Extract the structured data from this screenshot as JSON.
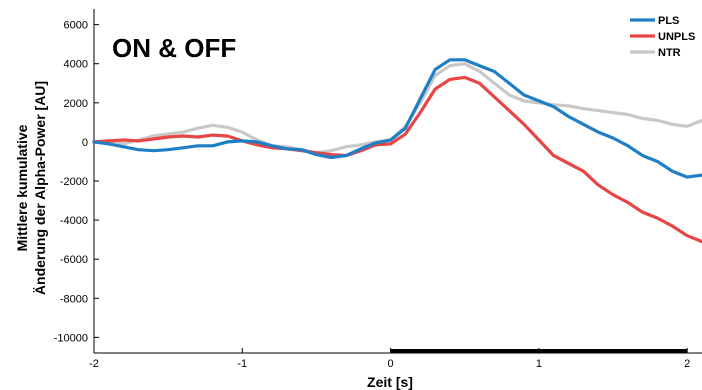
{
  "chart_data": {
    "type": "line",
    "title": "ON & OFF",
    "xlabel": "Zeit [s]",
    "ylabel_line1": "Mittlere kumulative",
    "ylabel_line2": "Änderung der Alpha-Power [AU]",
    "xlim": [
      -2,
      2.1
    ],
    "ylim": [
      -10800,
      6800
    ],
    "x_ticks": [
      -2,
      -1,
      0,
      1,
      2
    ],
    "x_tick_labels": [
      "-2",
      "-1",
      "0",
      "1",
      "2"
    ],
    "y_ticks": [
      6000,
      4000,
      2000,
      0,
      -2000,
      -4000,
      -6000,
      -8000,
      -10000
    ],
    "y_tick_labels": [
      "6000",
      "4000",
      "2000",
      "0",
      "-2000",
      "-4000",
      "-6000",
      "-8000",
      "-10000"
    ],
    "grid": false,
    "legend_position": "top-right",
    "significance_bar": {
      "x": [
        0,
        2
      ],
      "y": -10800,
      "color": "#000000"
    },
    "series": [
      {
        "name": "NTR",
        "color": "#c8c8c8",
        "x": [
          -2,
          -1.9,
          -1.8,
          -1.7,
          -1.6,
          -1.5,
          -1.4,
          -1.3,
          -1.2,
          -1.1,
          -1.0,
          -0.9,
          -0.8,
          -0.7,
          -0.6,
          -0.5,
          -0.4,
          -0.3,
          -0.2,
          -0.1,
          0,
          0.1,
          0.2,
          0.3,
          0.4,
          0.5,
          0.6,
          0.7,
          0.8,
          0.9,
          1.0,
          1.1,
          1.2,
          1.3,
          1.4,
          1.5,
          1.6,
          1.7,
          1.8,
          1.9,
          2.0,
          2.1
        ],
        "values": [
          0,
          50,
          -100,
          100,
          300,
          400,
          500,
          700,
          850,
          750,
          500,
          100,
          -200,
          -250,
          -400,
          -550,
          -450,
          -250,
          -150,
          0,
          100,
          800,
          2000,
          3400,
          3900,
          4000,
          3600,
          3000,
          2400,
          2100,
          2000,
          1900,
          1850,
          1700,
          1600,
          1500,
          1400,
          1200,
          1100,
          900,
          800,
          1100
        ]
      },
      {
        "name": "UNPLS",
        "color": "#e84545",
        "x": [
          -2,
          -1.9,
          -1.8,
          -1.7,
          -1.6,
          -1.5,
          -1.4,
          -1.3,
          -1.2,
          -1.1,
          -1.0,
          -0.9,
          -0.8,
          -0.7,
          -0.6,
          -0.5,
          -0.4,
          -0.3,
          -0.2,
          -0.1,
          0,
          0.1,
          0.2,
          0.3,
          0.4,
          0.5,
          0.6,
          0.7,
          0.8,
          0.9,
          1.0,
          1.1,
          1.2,
          1.3,
          1.4,
          1.5,
          1.6,
          1.7,
          1.8,
          1.9,
          2.0,
          2.1
        ],
        "values": [
          0,
          50,
          100,
          50,
          150,
          250,
          300,
          250,
          350,
          300,
          50,
          -150,
          -300,
          -350,
          -450,
          -550,
          -650,
          -700,
          -450,
          -150,
          -100,
          400,
          1500,
          2700,
          3200,
          3300,
          3000,
          2300,
          1600,
          900,
          100,
          -700,
          -1100,
          -1500,
          -2200,
          -2700,
          -3100,
          -3600,
          -3900,
          -4300,
          -4800,
          -5100
        ]
      },
      {
        "name": "PLS",
        "color": "#1f7fc4",
        "x": [
          -2,
          -1.9,
          -1.8,
          -1.7,
          -1.6,
          -1.5,
          -1.4,
          -1.3,
          -1.2,
          -1.1,
          -1.0,
          -0.9,
          -0.8,
          -0.7,
          -0.6,
          -0.5,
          -0.4,
          -0.3,
          -0.2,
          -0.1,
          0,
          0.1,
          0.2,
          0.3,
          0.4,
          0.5,
          0.6,
          0.7,
          0.8,
          0.9,
          1.0,
          1.1,
          1.2,
          1.3,
          1.4,
          1.5,
          1.6,
          1.7,
          1.8,
          1.9,
          2.0,
          2.1
        ],
        "values": [
          0,
          -100,
          -250,
          -400,
          -450,
          -400,
          -300,
          -200,
          -200,
          0,
          50,
          0,
          -200,
          -350,
          -400,
          -650,
          -800,
          -700,
          -350,
          -50,
          100,
          700,
          2200,
          3700,
          4200,
          4200,
          3900,
          3600,
          3000,
          2400,
          2100,
          1800,
          1300,
          900,
          500,
          200,
          -200,
          -700,
          -1000,
          -1500,
          -1800,
          -1700
        ]
      }
    ]
  }
}
